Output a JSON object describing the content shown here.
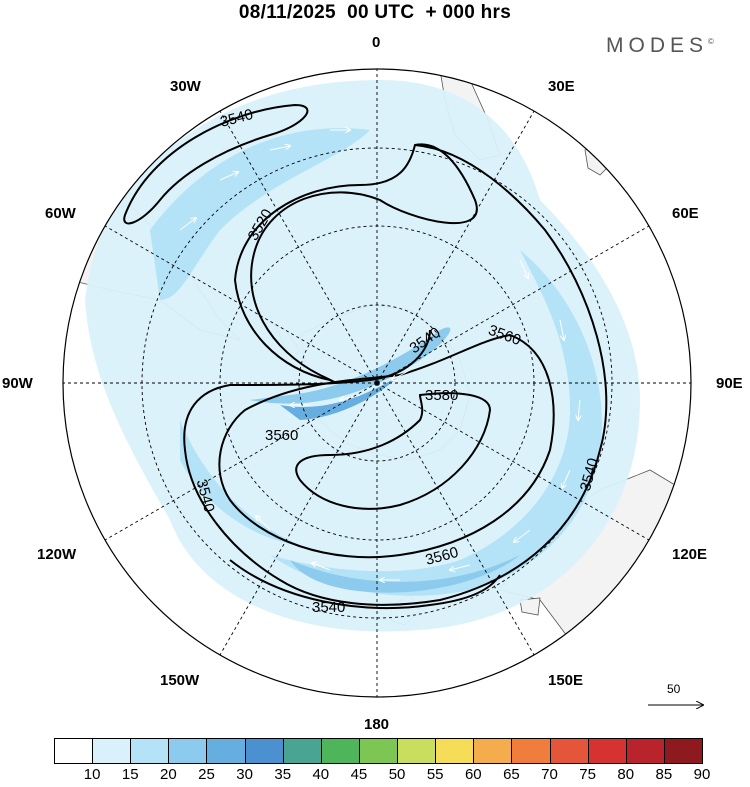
{
  "title": "08/11/2025  00 UTC  + 000 hrs",
  "brand": {
    "name": "MODES",
    "mark": "©"
  },
  "longitude_labels": {
    "n0": "0",
    "n30e": "30E",
    "n60e": "60E",
    "n90e": "90E",
    "n120e": "120E",
    "n150e": "150E",
    "n180": "180",
    "n150w": "150W",
    "n120w": "120W",
    "n90w": "90W",
    "n60w": "60W",
    "n30w": "30W"
  },
  "contour_labels": {
    "c3540_a": "3540",
    "c3520": "3520",
    "c3540_b": "3540",
    "c3560_a": "3560",
    "c3580": "3580",
    "c3560_b": "3560",
    "c3540_c": "3540",
    "c3560_c": "3560",
    "c3540_d": "3540",
    "c3540_e": "3540"
  },
  "reference_vector": {
    "value": "50"
  },
  "colorbar": {
    "labels": [
      "10",
      "15",
      "20",
      "25",
      "30",
      "35",
      "40",
      "45",
      "50",
      "55",
      "60",
      "65",
      "70",
      "75",
      "80",
      "85",
      "90"
    ],
    "colors": [
      "#ffffff",
      "#d9f1fb",
      "#b4e2f7",
      "#8ccbee",
      "#67aee0",
      "#4b91cf",
      "#49a494",
      "#4eb55a",
      "#7ec653",
      "#c8de5c",
      "#f6dd58",
      "#f5ac4c",
      "#f07d3c",
      "#e5553a",
      "#d63232",
      "#b8232c",
      "#8e1a1f"
    ]
  }
}
